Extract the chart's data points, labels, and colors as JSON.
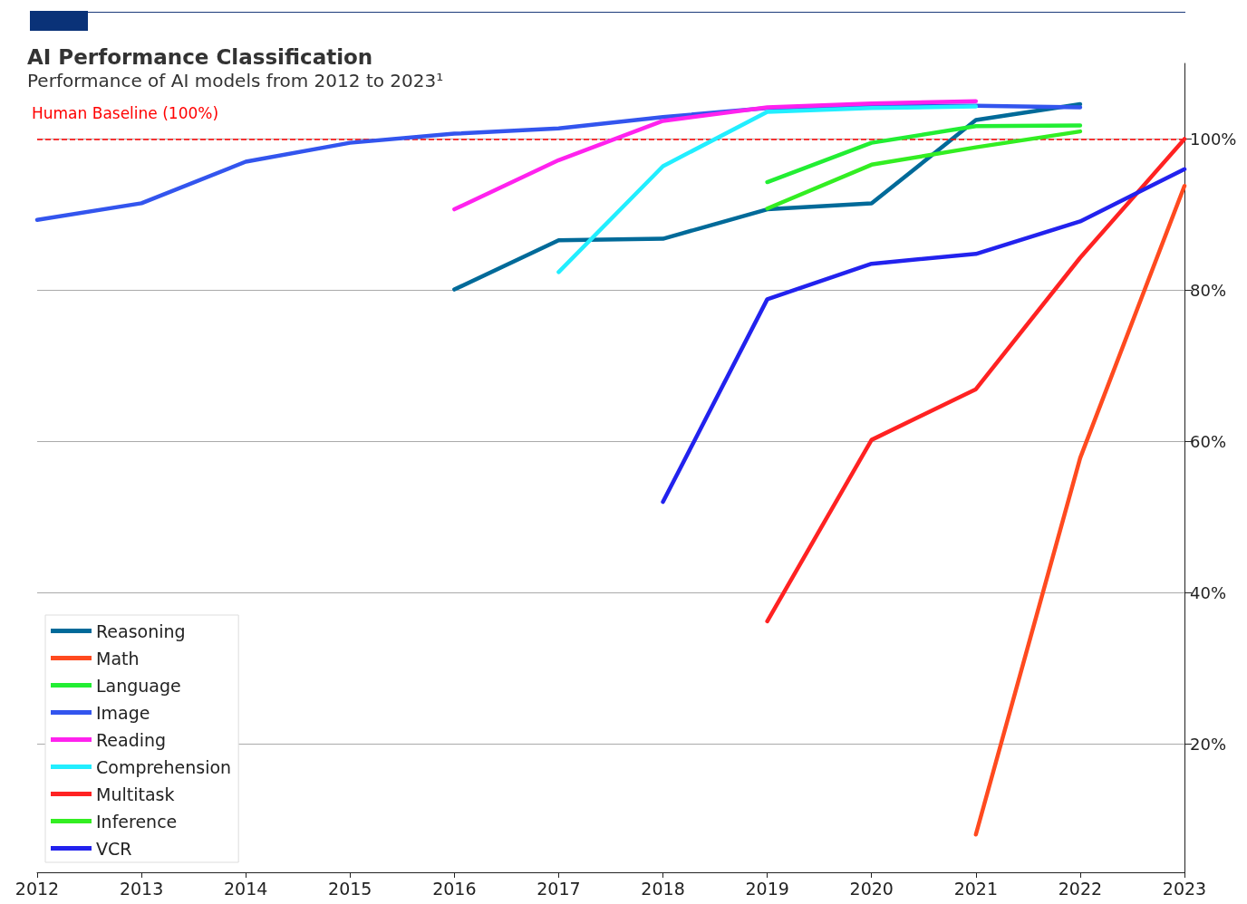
{
  "chart_data": {
    "type": "line",
    "title": "AI Performance Classification",
    "subtitle": "Performance of AI models from 2012 to 2023¹",
    "xlim": [
      2012,
      2023
    ],
    "xticks": [
      2012,
      2013,
      2014,
      2015,
      2016,
      2017,
      2018,
      2019,
      2020,
      2021,
      2022,
      2023
    ],
    "ylim": [
      3,
      110
    ],
    "yticks": [
      {
        "value": 20,
        "label": "20%"
      },
      {
        "value": 40,
        "label": "40%"
      },
      {
        "value": 60,
        "label": "60%"
      },
      {
        "value": 80,
        "label": "80%"
      },
      {
        "value": 100,
        "label": "100%"
      }
    ],
    "grid": "y",
    "legend": "bottom left",
    "marker": "none",
    "line_style": "solid",
    "ref_lines": [
      {
        "axis": "y",
        "value": 100,
        "label": "Human Baseline (100%)",
        "color": "#ff0000",
        "line_style": "dashed"
      }
    ],
    "series": [
      {
        "name": "Reasoning",
        "color": "#006a99",
        "x": [
          2016,
          2017,
          2018,
          2019,
          2020,
          2021,
          2022
        ],
        "values": [
          80.1,
          86.6,
          86.8,
          90.7,
          91.5,
          102.5,
          104.6
        ]
      },
      {
        "name": "Math",
        "color": "#ff4a1f",
        "x": [
          2021,
          2022,
          2023
        ],
        "values": [
          8.0,
          57.8,
          93.8
        ]
      },
      {
        "name": "Language",
        "color": "#22ee33",
        "x": [
          2019,
          2020,
          2021,
          2022
        ],
        "values": [
          94.3,
          99.5,
          101.7,
          101.8
        ]
      },
      {
        "name": "Image",
        "color": "#3355ee",
        "x": [
          2012,
          2013,
          2014,
          2015,
          2016,
          2017,
          2018,
          2019,
          2020,
          2021,
          2022
        ],
        "values": [
          89.3,
          91.5,
          97.0,
          99.5,
          100.7,
          101.4,
          102.9,
          104.1,
          104.4,
          104.4,
          104.2
        ]
      },
      {
        "name": "Reading",
        "color": "#ff22ee",
        "x": [
          2016,
          2017,
          2018,
          2019,
          2020,
          2021
        ],
        "values": [
          90.7,
          97.2,
          102.4,
          104.2,
          104.7,
          105.0
        ]
      },
      {
        "name": "Comprehension",
        "color": "#22eeff",
        "x": [
          2017,
          2018,
          2019,
          2020,
          2021
        ],
        "values": [
          82.4,
          96.4,
          103.6,
          104.1,
          104.3
        ]
      },
      {
        "name": "Multitask",
        "color": "#ff2222",
        "x": [
          2019,
          2020,
          2021,
          2022,
          2023
        ],
        "values": [
          36.2,
          60.2,
          66.9,
          84.3,
          100.0
        ]
      },
      {
        "name": "Inference",
        "color": "#33ee22",
        "x": [
          2019,
          2020,
          2021,
          2022
        ],
        "values": [
          90.8,
          96.6,
          98.9,
          101.0
        ]
      },
      {
        "name": "VCR",
        "color": "#2222ee",
        "x": [
          2018,
          2019,
          2020,
          2021,
          2022,
          2023
        ],
        "values": [
          52.0,
          78.8,
          83.5,
          84.8,
          89.1,
          96.0
        ]
      }
    ]
  }
}
